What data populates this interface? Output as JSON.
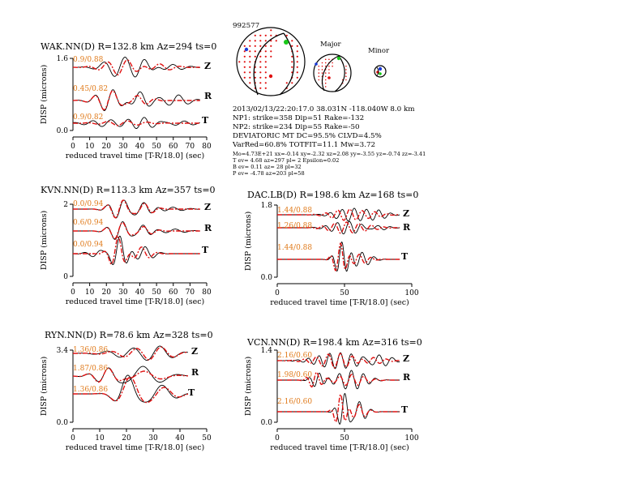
{
  "event": {
    "id": "992577",
    "origin": "2013/02/13/22:20:17.0 38.031N -118.040W 8.0 km",
    "np1": "NP1: strike=358 Dip=51 Rake=-132",
    "np2": "NP2: strike=234 Dip=55 Rake=-50",
    "deviatoric": "DEVIATORIC MT DC=95.5% CLVD=4.5%",
    "varred": "VarRed=60.8% TOTFIT=11.1 Mw=3.72",
    "mo_line": "Mo=4.73E+21 xx=-0.14 xy=-2.32 xz=2.08 yy=-3.55 yz=-0.74 zz=-3.41",
    "tev": "T ev= 4.68 az=297 pl= 2 Epsilon=0.02",
    "bev": "B ev= 0.11 az= 28 pl=32",
    "pev": "P ev= -4.78 az=203 pl=58",
    "major_label": "Major",
    "minor_label": "Minor"
  },
  "colors": {
    "observed": "#000000",
    "synthetic": "#e01010",
    "fit_label": "#e07a1a",
    "nodal_dots": "#e01010"
  },
  "chart_data": [
    {
      "type": "line",
      "title": "WAK.NN(D) R=132.8 km Az=294 ts=0",
      "xlabel": "reduced travel time [T-R/18.0] (sec)",
      "ylabel": "DISP (microns)",
      "xlim": [
        0,
        80
      ],
      "ylim": [
        0.0,
        1.6
      ],
      "xticks": [
        "0",
        "10",
        "20",
        "30",
        "40",
        "50",
        "60",
        "70",
        "80"
      ],
      "yticks": [
        "0.0",
        "1.6"
      ],
      "components": [
        {
          "name": "Z",
          "fit": "0.9/0.88"
        },
        {
          "name": "R",
          "fit": "0.45/0.82"
        },
        {
          "name": "T",
          "fit": "0.9/0.82"
        }
      ]
    },
    {
      "type": "line",
      "title": "KVN.NN(D) R=113.3 km Az=357 ts=0",
      "xlabel": "reduced travel time [T-R/18.0] (sec)",
      "ylabel": "DISP (microns)",
      "xlim": [
        0,
        80
      ],
      "ylim": [
        0,
        2
      ],
      "xticks": [
        "0",
        "10",
        "20",
        "30",
        "40",
        "50",
        "60",
        "70",
        "80"
      ],
      "yticks": [
        "0",
        "2"
      ],
      "components": [
        {
          "name": "Z",
          "fit": "0.0/0.94"
        },
        {
          "name": "R",
          "fit": "0.6/0.94"
        },
        {
          "name": "T",
          "fit": "0.0/0.94"
        }
      ]
    },
    {
      "type": "line",
      "title": "DAC.LB(D) R=198.6 km Az=168 ts=0",
      "xlabel": "reduced travel time [T-R/18.0] (sec)",
      "ylabel": "DISP (microns)",
      "xlim": [
        0,
        100
      ],
      "ylim": [
        0.0,
        1.8
      ],
      "xticks": [
        "0",
        "50",
        "100"
      ],
      "yticks": [
        "0.0",
        "1.8"
      ],
      "components": [
        {
          "name": "Z",
          "fit": "1.44/0.88"
        },
        {
          "name": "R",
          "fit": "1.26/0.88"
        },
        {
          "name": "T",
          "fit": "1.44/0.88"
        }
      ]
    },
    {
      "type": "line",
      "title": "RYN.NN(D) R=78.6 km Az=328 ts=0",
      "xlabel": "reduced travel time [T-R/18.0] (sec)",
      "ylabel": "DISP (microns)",
      "xlim": [
        0,
        50
      ],
      "ylim": [
        0.0,
        3.4
      ],
      "xticks": [
        "0",
        "10",
        "20",
        "30",
        "40",
        "50"
      ],
      "yticks": [
        "0.0",
        "3.4"
      ],
      "components": [
        {
          "name": "Z",
          "fit": "1.36/0.86"
        },
        {
          "name": "R",
          "fit": "1.87/0.86"
        },
        {
          "name": "T",
          "fit": "1.36/0.86"
        }
      ]
    },
    {
      "type": "line",
      "title": "VCN.NN(D) R=198.4 km Az=316 ts=0",
      "xlabel": "reduced travel time [T-R/18.0] (sec)",
      "ylabel": "DISP (microns)",
      "xlim": [
        0,
        100
      ],
      "ylim": [
        0.0,
        1.4
      ],
      "xticks": [
        "0",
        "50",
        "100"
      ],
      "yticks": [
        "0.0",
        "1.4"
      ],
      "components": [
        {
          "name": "Z",
          "fit": "2.16/0.60"
        },
        {
          "name": "R",
          "fit": "1.98/0.60"
        },
        {
          "name": "T",
          "fit": "2.16/0.60"
        }
      ]
    }
  ]
}
